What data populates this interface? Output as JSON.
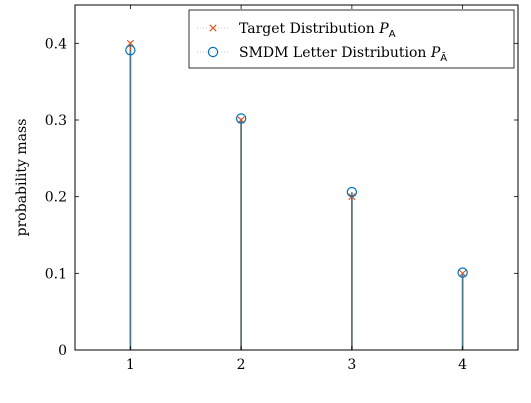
{
  "chart_data": {
    "type": "stem",
    "xlabel": "",
    "ylabel": "probability mass",
    "xlim": [
      0.5,
      4.5
    ],
    "ylim": [
      0,
      0.45
    ],
    "xticks": [
      1,
      2,
      3,
      4
    ],
    "yticks": [
      0,
      0.1,
      0.2,
      0.3,
      0.4
    ],
    "ytick_labels": [
      "0",
      "0.1",
      "0.2",
      "0.3",
      "0.4"
    ],
    "legend_position": "top-right",
    "series": [
      {
        "name_text": "Target Distribution ",
        "name_symbol": "P",
        "name_sub": "A",
        "marker": "x",
        "color": "#d95319",
        "x": [
          1,
          2,
          3,
          4
        ],
        "values": [
          0.4,
          0.3,
          0.2,
          0.1
        ]
      },
      {
        "name_text": "SMDM Letter Distribution ",
        "name_symbol": "P",
        "name_sub": "Ā",
        "marker": "circle",
        "color": "#0072bd",
        "stem_color": "#4a7a8c",
        "x": [
          1,
          2,
          3,
          4
        ],
        "values": [
          0.391,
          0.302,
          0.206,
          0.101
        ]
      }
    ]
  }
}
